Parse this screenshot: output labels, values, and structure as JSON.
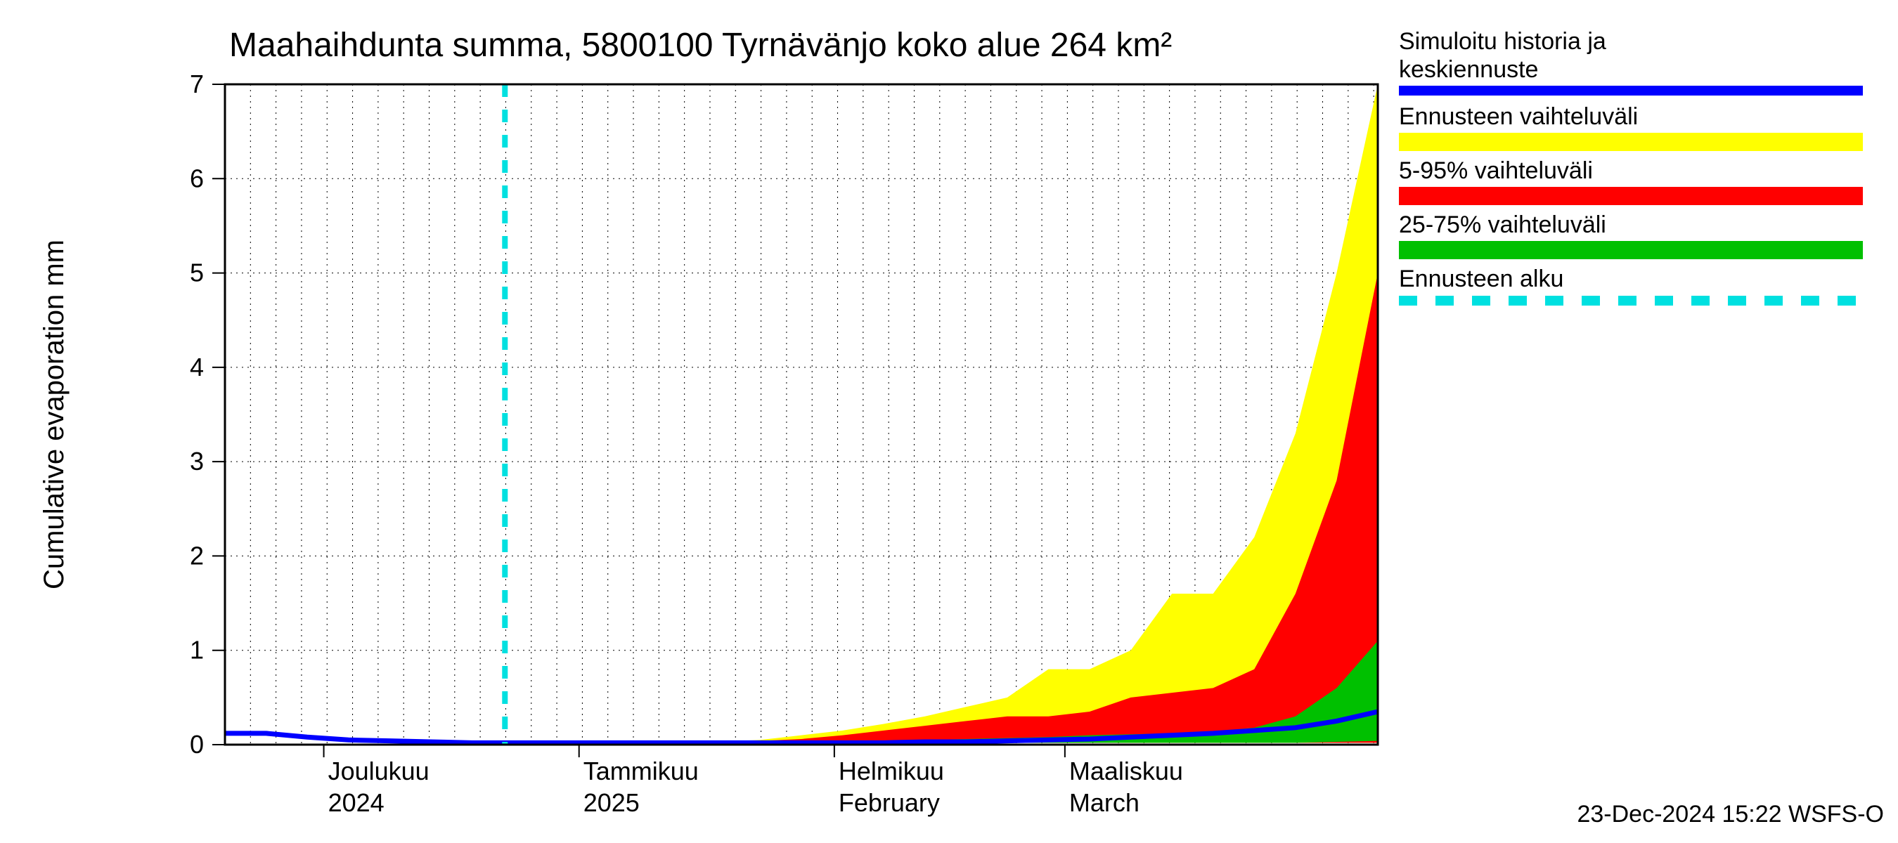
{
  "chart": {
    "type": "area",
    "title": "Maahaihdunta summa, 5800100 Tyrnävänjo koko alue 264 km²",
    "ylabel": "Cumulative evaporation   mm",
    "footer": "23-Dec-2024 15:22 WSFS-O",
    "background_color": "#ffffff",
    "grid_color": "#000000",
    "grid_dash": "2,6",
    "axes": {
      "y": {
        "min": 0,
        "max": 7,
        "tick_step": 1,
        "ticks": [
          0,
          1,
          2,
          3,
          4,
          5,
          6,
          7
        ]
      },
      "x": {
        "min": 0,
        "max": 140,
        "major_ticks": [
          {
            "pos": 12,
            "label_top": "Joulukuu",
            "label_bot": "2024"
          },
          {
            "pos": 43,
            "label_top": "Tammikuu",
            "label_bot": "2025"
          },
          {
            "pos": 74,
            "label_top": "Helmikuu",
            "label_bot": "February"
          },
          {
            "pos": 102,
            "label_top": "Maaliskuu",
            "label_bot": "March"
          }
        ],
        "minor_step": 3.1
      }
    },
    "forecast_start_x": 34,
    "colors": {
      "history": "#0000ff",
      "full_range": "#ffff00",
      "range_5_95": "#ff0000",
      "range_25_75": "#00c000",
      "forecast_line": "#00e0e0"
    },
    "line_widths": {
      "history": 7,
      "forecast_dash": 8
    },
    "legend": {
      "items": [
        {
          "label": "Simuloitu historia ja",
          "label2": "keskiennuste",
          "color": "#0000ff",
          "kind": "line"
        },
        {
          "label": "Ennusteen vaihteluväli",
          "color": "#ffff00",
          "kind": "band"
        },
        {
          "label": "5-95% vaihteluväli",
          "color": "#ff0000",
          "kind": "band"
        },
        {
          "label": "25-75% vaihteluväli",
          "color": "#00c000",
          "kind": "band"
        },
        {
          "label": "Ennusteen alku",
          "color": "#00e0e0",
          "kind": "dash"
        }
      ]
    },
    "series": {
      "x": [
        0,
        5,
        10,
        15,
        20,
        25,
        30,
        34,
        40,
        50,
        60,
        65,
        70,
        75,
        80,
        85,
        90,
        95,
        100,
        105,
        110,
        115,
        120,
        125,
        130,
        135,
        140
      ],
      "history": [
        0.12,
        0.12,
        0.08,
        0.05,
        0.04,
        0.03,
        0.02,
        0.02,
        0.02,
        0.02,
        0.02,
        0.02,
        0.02,
        0.02,
        0.02,
        0.03,
        0.03,
        0.04,
        0.05,
        0.06,
        0.08,
        0.1,
        0.12,
        0.15,
        0.18,
        0.25,
        0.35
      ],
      "p25": [
        0.02,
        0.02,
        0.02,
        0.02,
        0.02,
        0.02,
        0.02,
        0.02,
        0.02,
        0.02,
        0.02,
        0.02,
        0.02,
        0.02,
        0.02,
        0.02,
        0.02,
        0.02,
        0.02,
        0.02,
        0.02,
        0.02,
        0.02,
        0.02,
        0.02,
        0.03,
        0.04
      ],
      "p75": [
        0.02,
        0.02,
        0.02,
        0.02,
        0.02,
        0.02,
        0.02,
        0.02,
        0.02,
        0.02,
        0.02,
        0.02,
        0.03,
        0.03,
        0.04,
        0.05,
        0.06,
        0.07,
        0.08,
        0.1,
        0.11,
        0.12,
        0.14,
        0.18,
        0.3,
        0.6,
        1.1
      ],
      "p5": [
        0.02,
        0.02,
        0.02,
        0.02,
        0.02,
        0.02,
        0.02,
        0.02,
        0.02,
        0.02,
        0.02,
        0.02,
        0.02,
        0.02,
        0.02,
        0.02,
        0.02,
        0.02,
        0.02,
        0.02,
        0.02,
        0.02,
        0.02,
        0.02,
        0.02,
        0.02,
        0.02
      ],
      "p95": [
        0.02,
        0.02,
        0.02,
        0.02,
        0.02,
        0.02,
        0.02,
        0.02,
        0.02,
        0.02,
        0.03,
        0.04,
        0.06,
        0.1,
        0.15,
        0.2,
        0.25,
        0.3,
        0.3,
        0.35,
        0.5,
        0.55,
        0.6,
        0.8,
        1.6,
        2.8,
        5.0
      ],
      "min": [
        0.02,
        0.02,
        0.02,
        0.02,
        0.02,
        0.02,
        0.02,
        0.02,
        0.02,
        0.02,
        0.02,
        0.02,
        0.02,
        0.02,
        0.02,
        0.02,
        0.02,
        0.02,
        0.02,
        0.02,
        0.02,
        0.02,
        0.02,
        0.02,
        0.02,
        0.02,
        0.02
      ],
      "max": [
        0.02,
        0.02,
        0.02,
        0.02,
        0.02,
        0.02,
        0.02,
        0.02,
        0.02,
        0.02,
        0.03,
        0.05,
        0.1,
        0.15,
        0.22,
        0.3,
        0.4,
        0.5,
        0.8,
        0.8,
        1.0,
        1.6,
        1.6,
        2.2,
        3.3,
        5.0,
        7.0
      ]
    }
  }
}
